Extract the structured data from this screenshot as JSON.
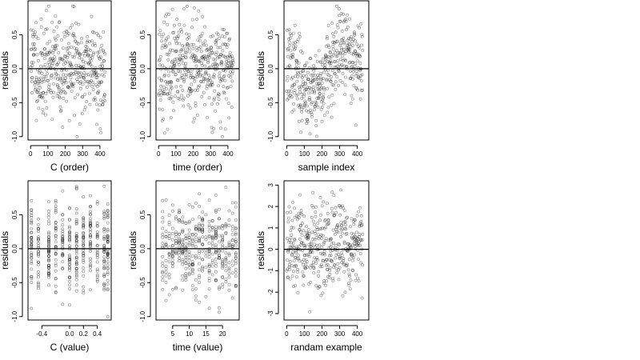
{
  "chart_data": [
    {
      "type": "scatter",
      "xlabel": "C (order)",
      "ylabel": "residuals",
      "xlim": [
        -15,
        465
      ],
      "ylim": [
        -1.05,
        1.0
      ],
      "xticks": [
        0,
        100,
        200,
        300,
        400
      ],
      "yticks": [
        -1.0,
        -0.5,
        0.0,
        0.5
      ],
      "ytick_labels": [
        "-1.0",
        "-0.5",
        "0.0",
        "0.5"
      ],
      "hline": 0,
      "points": {
        "mode": "index",
        "n": 430,
        "sd": 0.35,
        "clip": [
          -1.0,
          0.92
        ],
        "seed": 11,
        "pattern": "blocks"
      }
    },
    {
      "type": "scatter",
      "xlabel": "time (order)",
      "ylabel": "residuals",
      "xlim": [
        -15,
        465
      ],
      "ylim": [
        -1.05,
        1.0
      ],
      "xticks": [
        0,
        100,
        200,
        300,
        400
      ],
      "yticks": [
        -1.0,
        -0.5,
        0.0,
        0.5
      ],
      "ytick_labels": [
        "-1.0",
        "-0.5",
        "0.0",
        "0.5"
      ],
      "hline": 0,
      "points": {
        "mode": "index",
        "n": 430,
        "sd": 0.35,
        "clip": [
          -1.0,
          0.92
        ],
        "seed": 23,
        "pattern": "random"
      }
    },
    {
      "type": "scatter",
      "xlabel": "sample index",
      "ylabel": "residuals",
      "xlim": [
        -15,
        465
      ],
      "ylim": [
        -1.05,
        1.0
      ],
      "xticks": [
        0,
        100,
        200,
        300,
        400
      ],
      "yticks": [
        -1.0,
        -0.5,
        0.0,
        0.5
      ],
      "ytick_labels": [
        "-1.0",
        "-0.5",
        "0.0",
        "0.5"
      ],
      "hline": 0,
      "points": {
        "mode": "index",
        "n": 430,
        "sd": 0.3,
        "clip": [
          -1.0,
          0.92
        ],
        "seed": 37,
        "pattern": "trend"
      }
    },
    {
      "type": "scatter",
      "xlabel": "C (value)",
      "ylabel": "residuals",
      "xlim": [
        -0.6,
        0.6
      ],
      "ylim": [
        -1.05,
        1.0
      ],
      "xticks": [
        -0.4,
        0.0,
        0.2,
        0.4
      ],
      "xtick_labels": [
        "-0.4",
        "0.0",
        "0.2",
        "0.4"
      ],
      "yticks": [
        -1.0,
        -0.5,
        0.0,
        0.5
      ],
      "ytick_labels": [
        "-1.0",
        "-0.5",
        "0.0",
        "0.5"
      ],
      "hline": 0,
      "points": {
        "mode": "levels",
        "levels": [
          -0.55,
          -0.45,
          -0.3,
          -0.2,
          -0.1,
          0.0,
          0.1,
          0.2,
          0.3,
          0.4,
          0.5,
          0.55
        ],
        "n": 430,
        "sd": 0.35,
        "clip": [
          -1.0,
          0.92
        ],
        "seed": 41
      }
    },
    {
      "type": "scatter",
      "xlabel": "time (value)",
      "ylabel": "residuals",
      "xlim": [
        0,
        25
      ],
      "ylim": [
        -1.05,
        1.0
      ],
      "xticks": [
        5,
        10,
        15,
        20
      ],
      "yticks": [
        -1.0,
        -0.5,
        0.0,
        0.5
      ],
      "ytick_labels": [
        "-1.0",
        "-0.5",
        "0.0",
        "0.5"
      ],
      "hline": 0,
      "points": {
        "mode": "levels",
        "levels": [
          2,
          3,
          4,
          5,
          6,
          7,
          8,
          9,
          10,
          11,
          12,
          13,
          14,
          15,
          16,
          17,
          18,
          19,
          20,
          21,
          22,
          23,
          24
        ],
        "n": 430,
        "sd": 0.33,
        "clip": [
          -1.0,
          0.92
        ],
        "seed": 53
      }
    },
    {
      "type": "scatter",
      "xlabel": "randam example",
      "ylabel": "residuals",
      "xlim": [
        -15,
        465
      ],
      "ylim": [
        -3.3,
        3.2
      ],
      "xticks": [
        0,
        100,
        200,
        300,
        400
      ],
      "yticks": [
        -3,
        -2,
        -1,
        0,
        1,
        2,
        3
      ],
      "ytick_labels": [
        "-3",
        "-2",
        "-1",
        "0",
        "1",
        "2",
        "3"
      ],
      "hline": 0,
      "points": {
        "mode": "index",
        "n": 430,
        "sd": 1.0,
        "clip": [
          -3.1,
          3.0
        ],
        "seed": 67,
        "pattern": "random"
      }
    }
  ]
}
